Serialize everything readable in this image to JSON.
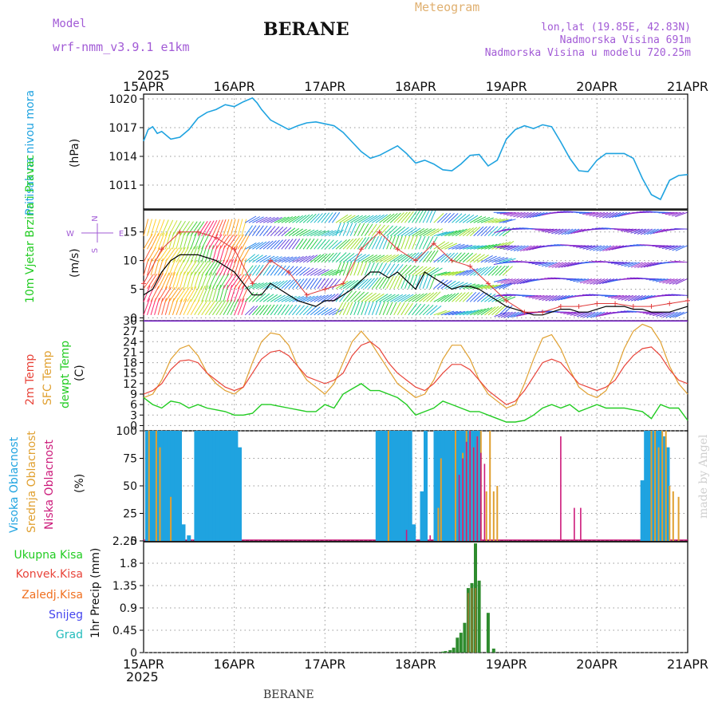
{
  "header": {
    "model_label": "Model",
    "model_name": "wrf-nmm_v3.9.1 e1km",
    "station": "BERANE",
    "title": "Meteogram",
    "lonlat": "lon,lat (19.85E, 42.83N)",
    "elevation": "Nadmorska Visina 691m",
    "model_elevation": "Nadmorska Visina u modelu 720.25m",
    "footer_station": "BERANE",
    "credit": "made by Angel"
  },
  "time_axis": {
    "year": "2025",
    "labels": [
      "15APR",
      "16APR",
      "17APR",
      "18APR",
      "19APR",
      "20APR",
      "21APR"
    ]
  },
  "colors": {
    "pressure": "#1fa3e0",
    "wind_speed": "#000000",
    "wind_gust": "#e03a3a",
    "temp2m": "#e8443a",
    "sfc_temp": "#e0a030",
    "dewpt": "#22cc22",
    "high_cloud": "#1fa3e0",
    "mid_cloud": "#e0a030",
    "low_cloud": "#cc1a7a",
    "total_precip": "#2e8b2e",
    "conv_precip": "#e8443a",
    "frz_precip": "#f07020",
    "snow": "#4444ee",
    "graupel": "#22bbbb"
  },
  "chart_data": [
    {
      "type": "line",
      "panel": "pressure",
      "ylabel_left": "Pritisak na nivou mora",
      "unit": "(hPa)",
      "yticks": [
        1011,
        1014,
        1017,
        1020
      ],
      "ylim": [
        1008.5,
        1020.5
      ],
      "series": [
        {
          "x": [
            0,
            0.05,
            0.1,
            0.15,
            0.2,
            0.3,
            0.4,
            0.5,
            0.6,
            0.7,
            0.8,
            0.9,
            1.0,
            1.1,
            1.2,
            1.25,
            1.3,
            1.4,
            1.5,
            1.6,
            1.7,
            1.8,
            1.9,
            2.0,
            2.1,
            2.2,
            2.3,
            2.4,
            2.5,
            2.6,
            2.7,
            2.8,
            2.9,
            3.0,
            3.1,
            3.2,
            3.3,
            3.4,
            3.5,
            3.6,
            3.7,
            3.8,
            3.9,
            4.0,
            4.1,
            4.2,
            4.3,
            4.4,
            4.5,
            4.6,
            4.7,
            4.8,
            4.9,
            5.0,
            5.1,
            5.2,
            5.3,
            5.4,
            5.5,
            5.6,
            5.7,
            5.8,
            5.9,
            6.0
          ],
          "values": [
            1015.6,
            1016.8,
            1017.1,
            1016.4,
            1016.6,
            1015.8,
            1016.0,
            1016.8,
            1018.0,
            1018.6,
            1018.9,
            1019.4,
            1019.2,
            1019.7,
            1020.1,
            1019.6,
            1018.9,
            1017.8,
            1017.3,
            1016.8,
            1017.2,
            1017.5,
            1017.6,
            1017.4,
            1017.2,
            1016.5,
            1015.5,
            1014.5,
            1013.8,
            1014.1,
            1014.6,
            1015.1,
            1014.3,
            1013.3,
            1013.6,
            1013.2,
            1012.6,
            1012.5,
            1013.2,
            1014.1,
            1014.2,
            1013.0,
            1013.6,
            1015.8,
            1016.8,
            1017.2,
            1016.9,
            1017.3,
            1017.1,
            1015.5,
            1013.8,
            1012.5,
            1012.4,
            1013.6,
            1014.3,
            1014.3,
            1014.3,
            1013.8,
            1011.7,
            1010.0,
            1009.5,
            1011.5,
            1012.0,
            1012.1
          ]
        }
      ]
    },
    {
      "type": "line",
      "panel": "wind",
      "ylabel_left": "10m Vjetar Brzina i Pravac",
      "unit": "(m/s)",
      "compass_labels": [
        "N",
        "S",
        "E",
        "W"
      ],
      "yticks": [
        0,
        5,
        10,
        15
      ],
      "ylim": [
        -0.5,
        19
      ],
      "series": [
        {
          "name": "speed",
          "x": [
            0,
            0.1,
            0.2,
            0.3,
            0.4,
            0.5,
            0.6,
            0.7,
            0.8,
            0.9,
            1.0,
            1.1,
            1.2,
            1.3,
            1.4,
            1.5,
            1.6,
            1.7,
            1.8,
            1.9,
            2.0,
            2.1,
            2.2,
            2.3,
            2.4,
            2.5,
            2.6,
            2.7,
            2.8,
            2.9,
            3.0,
            3.1,
            3.2,
            3.3,
            3.4,
            3.5,
            3.6,
            3.7,
            3.8,
            3.9,
            4.0,
            4.1,
            4.2,
            4.3,
            4.4,
            4.5,
            4.6,
            4.7,
            4.8,
            4.9,
            5.0,
            5.1,
            5.2,
            5.3,
            5.4,
            5.5,
            5.6,
            5.7,
            5.8,
            5.9,
            6.0
          ],
          "values": [
            4,
            5,
            8,
            10,
            11,
            11,
            11,
            10.5,
            10,
            9,
            8,
            6,
            4,
            4,
            6,
            5,
            4,
            3,
            2.5,
            2,
            3,
            3,
            4,
            5,
            6.5,
            8,
            8,
            7,
            8,
            6.5,
            5,
            8,
            7,
            6,
            5,
            5.5,
            5.5,
            5,
            4,
            3,
            2,
            1.5,
            1,
            0.5,
            0.5,
            1,
            1.5,
            1.5,
            1,
            1,
            1.5,
            2,
            2,
            2,
            1.5,
            1.5,
            1,
            1,
            1,
            1.5,
            2
          ]
        },
        {
          "name": "gust",
          "x": [
            0,
            0.2,
            0.4,
            0.6,
            0.8,
            1.0,
            1.2,
            1.4,
            1.6,
            1.8,
            2.0,
            2.2,
            2.4,
            2.6,
            2.8,
            3.0,
            3.2,
            3.4,
            3.6,
            3.8,
            4.0,
            4.2,
            4.4,
            4.6,
            4.8,
            5.0,
            5.2,
            5.4,
            5.6,
            5.8,
            6.0
          ],
          "values": [
            6,
            12,
            15,
            15,
            14,
            12,
            6,
            10,
            8,
            4,
            5,
            6,
            12,
            15,
            12,
            10,
            13,
            10,
            9,
            6,
            3,
            1,
            1,
            2,
            2,
            2.5,
            2.5,
            2,
            2,
            2.5,
            3
          ]
        }
      ]
    },
    {
      "type": "line",
      "panel": "temperature",
      "ylabel_left": [
        "2m Temp",
        "SFC Temp",
        "dewpt Temp"
      ],
      "unit": "(C)",
      "yticks": [
        0,
        3,
        6,
        9,
        12,
        15,
        18,
        21,
        24,
        27,
        30
      ],
      "ylim": [
        -1.5,
        30
      ],
      "series": [
        {
          "name": "2m Temp",
          "x": [
            0,
            0.1,
            0.2,
            0.3,
            0.4,
            0.5,
            0.6,
            0.7,
            0.8,
            0.9,
            1.0,
            1.1,
            1.2,
            1.3,
            1.4,
            1.5,
            1.6,
            1.7,
            1.8,
            1.9,
            2.0,
            2.1,
            2.2,
            2.3,
            2.4,
            2.5,
            2.6,
            2.7,
            2.8,
            2.9,
            3.0,
            3.1,
            3.2,
            3.3,
            3.4,
            3.5,
            3.6,
            3.7,
            3.8,
            3.9,
            4.0,
            4.1,
            4.2,
            4.3,
            4.4,
            4.5,
            4.6,
            4.7,
            4.8,
            4.9,
            5.0,
            5.1,
            5.2,
            5.3,
            5.4,
            5.5,
            5.6,
            5.7,
            5.8,
            5.9,
            6.0
          ],
          "values": [
            9,
            10,
            12,
            16,
            18.5,
            18.8,
            18,
            15,
            13,
            11,
            10,
            11,
            15,
            19,
            21,
            21.5,
            20,
            17,
            14,
            13,
            12,
            13,
            15,
            20,
            23,
            24,
            22,
            18,
            15,
            13,
            11,
            10,
            12,
            15,
            17.5,
            17.5,
            16,
            13,
            10,
            8,
            6,
            7,
            10,
            14,
            18,
            19,
            18,
            15,
            12,
            11,
            10,
            11,
            13,
            17,
            20,
            22,
            22.5,
            20,
            16,
            13,
            12
          ]
        },
        {
          "name": "SFC Temp",
          "x": [
            0,
            0.1,
            0.2,
            0.3,
            0.4,
            0.5,
            0.6,
            0.7,
            0.8,
            0.9,
            1.0,
            1.1,
            1.2,
            1.3,
            1.4,
            1.5,
            1.6,
            1.7,
            1.8,
            1.9,
            2.0,
            2.1,
            2.2,
            2.3,
            2.4,
            2.5,
            2.6,
            2.7,
            2.8,
            2.9,
            3.0,
            3.1,
            3.2,
            3.3,
            3.4,
            3.5,
            3.6,
            3.7,
            3.8,
            3.9,
            4.0,
            4.1,
            4.2,
            4.3,
            4.4,
            4.5,
            4.6,
            4.7,
            4.8,
            4.9,
            5.0,
            5.1,
            5.2,
            5.3,
            5.4,
            5.5,
            5.6,
            5.7,
            5.8,
            5.9,
            6.0
          ],
          "values": [
            8,
            9,
            13,
            19,
            22,
            23,
            20,
            15,
            12,
            10,
            9,
            11,
            18,
            24,
            26.5,
            26,
            23,
            17,
            13,
            11,
            9,
            12,
            18,
            24,
            27,
            24,
            20,
            16,
            12,
            10,
            8,
            9,
            13,
            19,
            23,
            23,
            19,
            13,
            9,
            7,
            5,
            6,
            12,
            19,
            25,
            26,
            22,
            16,
            11,
            9,
            8,
            10,
            15,
            22,
            27,
            29,
            28,
            24,
            17,
            12,
            9
          ]
        },
        {
          "name": "dewpt Temp",
          "x": [
            0,
            0.1,
            0.2,
            0.3,
            0.4,
            0.5,
            0.6,
            0.7,
            0.8,
            0.9,
            1.0,
            1.1,
            1.2,
            1.3,
            1.4,
            1.5,
            1.6,
            1.7,
            1.8,
            1.9,
            2.0,
            2.1,
            2.2,
            2.3,
            2.4,
            2.5,
            2.6,
            2.7,
            2.8,
            2.9,
            3.0,
            3.1,
            3.2,
            3.3,
            3.4,
            3.5,
            3.6,
            3.7,
            3.8,
            3.9,
            4.0,
            4.1,
            4.2,
            4.3,
            4.4,
            4.5,
            4.6,
            4.7,
            4.8,
            4.9,
            5.0,
            5.1,
            5.2,
            5.3,
            5.4,
            5.5,
            5.6,
            5.7,
            5.8,
            5.9,
            6.0
          ],
          "values": [
            8,
            6,
            5,
            7,
            6.5,
            5,
            6,
            5,
            4.5,
            4,
            3,
            3,
            3.5,
            6,
            6,
            5.5,
            5,
            4.5,
            4,
            4,
            6,
            5,
            9,
            10.5,
            12,
            10,
            10,
            9,
            8,
            6,
            3,
            4,
            5,
            7,
            6,
            5,
            4,
            4,
            3,
            2,
            1,
            1,
            1.5,
            3,
            5,
            6,
            5,
            6,
            4,
            5,
            6,
            5,
            5,
            5,
            4.5,
            4,
            2,
            6,
            5,
            5,
            1.5
          ]
        }
      ]
    },
    {
      "type": "bar",
      "panel": "cloud",
      "ylabel_left": [
        "Visoka Oblacnost",
        "Srednja Oblacnost",
        "Niska Oblacnost"
      ],
      "unit": "(%)",
      "yticks": [
        0,
        25,
        50,
        75,
        100
      ],
      "ylim": [
        0,
        100
      ],
      "series": [
        {
          "name": "Visoka Oblacnost",
          "x": [
            0.04,
            0.08,
            0.12,
            0.16,
            0.2,
            0.24,
            0.28,
            0.32,
            0.36,
            0.4,
            0.44,
            0.5,
            0.58,
            0.62,
            0.66,
            0.7,
            0.74,
            0.78,
            0.82,
            0.86,
            0.9,
            0.94,
            0.98,
            1.02,
            1.06,
            2.58,
            2.62,
            2.66,
            2.7,
            2.74,
            2.78,
            2.82,
            2.86,
            2.9,
            2.94,
            2.98,
            3.07,
            3.11,
            3.22,
            3.26,
            3.3,
            3.34,
            3.38,
            3.42,
            3.46,
            3.5,
            3.54,
            3.58,
            3.62,
            3.66,
            3.7,
            5.5,
            5.54,
            5.58,
            5.62,
            5.66,
            5.7,
            5.74,
            5.78
          ],
          "values": [
            100,
            100,
            100,
            100,
            100,
            100,
            100,
            100,
            100,
            100,
            15,
            5,
            100,
            100,
            100,
            100,
            100,
            100,
            100,
            100,
            100,
            100,
            100,
            100,
            85,
            100,
            100,
            100,
            100,
            100,
            100,
            100,
            100,
            100,
            100,
            15,
            45,
            100,
            100,
            100,
            100,
            100,
            100,
            100,
            100,
            100,
            100,
            100,
            100,
            100,
            100,
            55,
            100,
            100,
            100,
            100,
            100,
            95,
            85
          ]
        },
        {
          "name": "Srednja Oblacnost",
          "x": [
            0.06,
            0.14,
            0.18,
            0.3,
            2.7,
            3.25,
            3.28,
            3.44,
            3.52,
            3.56,
            3.6,
            3.64,
            3.68,
            3.72,
            3.78,
            3.82,
            3.86,
            3.9,
            5.6,
            5.64,
            5.68,
            5.72,
            5.76,
            5.8,
            5.84,
            5.9
          ],
          "values": [
            100,
            100,
            85,
            40,
            100,
            30,
            75,
            100,
            80,
            100,
            100,
            85,
            95,
            100,
            45,
            100,
            45,
            50,
            100,
            100,
            85,
            100,
            100,
            50,
            45,
            40
          ]
        },
        {
          "name": "Niska Oblacnost",
          "x": [
            2.9,
            3.16,
            3.48,
            3.52,
            3.56,
            3.6,
            3.64,
            3.68,
            3.72,
            3.76,
            4.6,
            4.75,
            4.82
          ],
          "values": [
            10,
            5,
            60,
            75,
            90,
            100,
            85,
            95,
            80,
            70,
            95,
            30,
            30
          ]
        }
      ]
    },
    {
      "type": "bar",
      "panel": "precip",
      "ylabel_left": "1hr Precip (mm)",
      "legend": [
        "Ukupna Kisa",
        "Konvek.Kisa",
        "Zaledj.Kisa",
        "Snijeg",
        "Grad"
      ],
      "yticks": [
        0,
        0.45,
        0.9,
        1.35,
        1.8,
        2.25
      ],
      "ylim": [
        0,
        2.25
      ],
      "series": [
        {
          "name": "Ukupna Kisa",
          "x": [
            3.3,
            3.33,
            3.38,
            3.42,
            3.46,
            3.5,
            3.54,
            3.58,
            3.62,
            3.66,
            3.7,
            3.8,
            3.86
          ],
          "values": [
            0.02,
            0.03,
            0.05,
            0.1,
            0.3,
            0.4,
            0.6,
            1.3,
            1.4,
            2.2,
            1.45,
            0.8,
            0.08
          ]
        },
        {
          "name": "Konvek.Kisa",
          "x": [
            3.58,
            3.62,
            3.66
          ],
          "values": [
            1.2,
            1.3,
            1.3
          ]
        }
      ]
    }
  ]
}
